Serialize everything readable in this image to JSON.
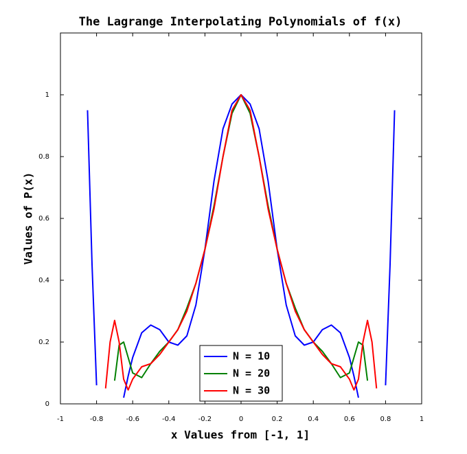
{
  "chart_data": {
    "type": "line",
    "title": "The Lagrange Interpolating Polynomials of f(x)",
    "x_label": "x Values from [-1, 1]",
    "y_label": "Values of P(x)",
    "x": [
      -0.85,
      -0.825,
      -0.8,
      -0.775,
      -0.75,
      -0.725,
      -0.7,
      -0.675,
      -0.65,
      -0.625,
      -0.6,
      -0.55,
      -0.5,
      -0.45,
      -0.4,
      -0.35,
      -0.3,
      -0.25,
      -0.2,
      -0.15,
      -0.1,
      -0.05,
      0,
      0.05,
      0.1,
      0.15,
      0.2,
      0.25,
      0.3,
      0.35,
      0.4,
      0.45,
      0.5,
      0.55,
      0.6,
      0.625,
      0.65,
      0.675,
      0.7,
      0.725,
      0.75,
      0.775,
      0.8,
      0.825,
      0.85
    ],
    "series": [
      {
        "name": "N = 10",
        "color": "#0000ff",
        "values": [
          0.95,
          0.45,
          0.06,
          null,
          null,
          null,
          null,
          null,
          0.02,
          0.09,
          0.15,
          0.23,
          0.255,
          0.24,
          0.2,
          0.19,
          0.22,
          0.32,
          0.5,
          0.72,
          0.89,
          0.97,
          1,
          0.97,
          0.89,
          0.72,
          0.5,
          0.32,
          0.22,
          0.19,
          0.2,
          0.24,
          0.255,
          0.23,
          0.15,
          0.09,
          0.02,
          null,
          null,
          null,
          null,
          null,
          0.06,
          0.45,
          0.95
        ]
      },
      {
        "name": "N = 20",
        "color": "#008000",
        "values": [
          null,
          null,
          0.06,
          null,
          null,
          null,
          0.075,
          0.19,
          0.2,
          0.15,
          0.1,
          0.085,
          0.13,
          0.17,
          0.2,
          0.24,
          0.31,
          0.39,
          0.5,
          0.64,
          0.8,
          0.94,
          1,
          0.94,
          0.8,
          0.64,
          0.5,
          0.39,
          0.31,
          0.24,
          0.2,
          0.17,
          0.13,
          0.085,
          0.1,
          0.15,
          0.2,
          0.19,
          0.075,
          null,
          null,
          null,
          0.06,
          null,
          null
        ]
      },
      {
        "name": "N = 30",
        "color": "#ff0000",
        "values": [
          null,
          null,
          0.06,
          null,
          0.05,
          0.2,
          0.27,
          0.2,
          0.08,
          0.045,
          0.08,
          0.12,
          0.13,
          0.16,
          0.2,
          0.24,
          0.3,
          0.39,
          0.5,
          0.63,
          0.8,
          0.95,
          1,
          0.95,
          0.8,
          0.63,
          0.5,
          0.39,
          0.3,
          0.24,
          0.2,
          0.16,
          0.13,
          0.12,
          0.08,
          0.045,
          0.08,
          0.2,
          0.27,
          0.2,
          0.05,
          null,
          0.06,
          null,
          null
        ]
      }
    ],
    "xlim": [
      -1,
      1
    ],
    "xticks": [
      -1,
      -0.8,
      -0.6,
      -0.4,
      -0.2,
      0,
      0.2,
      0.4,
      0.6,
      0.8,
      1
    ],
    "ylim": [
      0,
      1.2
    ],
    "yticks": [
      0,
      0.2,
      0.4,
      0.6,
      0.8,
      1
    ],
    "grid": false,
    "legend": "bottom"
  }
}
